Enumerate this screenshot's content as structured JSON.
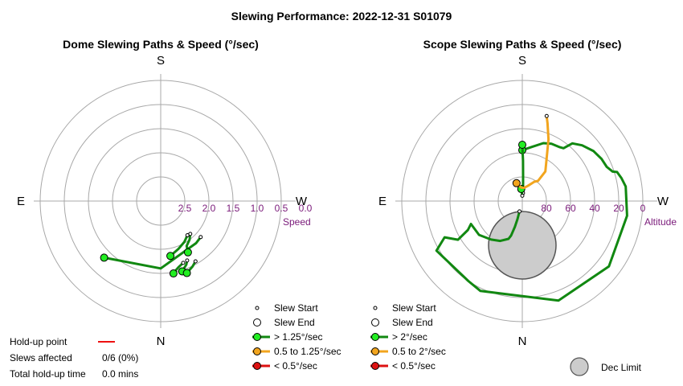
{
  "title": "Slewing Performance: 2022-12-31 S01079",
  "colors": {
    "fast": "#118811",
    "mid": "#f2a51e",
    "slow": "#dd1111",
    "fast_marker": "#22ee22",
    "mid_marker": "#f2a51e",
    "slow_marker": "#dd1111",
    "ring": "#a8a8a8",
    "tick": "#7a1a7a",
    "dec_limit": "#cccccc",
    "holdup": "#ee1111"
  },
  "chart_data": [
    {
      "type": "polar-path",
      "title": "Dome Slewing Paths & Speed (°/sec)",
      "directions": {
        "top": "S",
        "bottom": "N",
        "left": "E",
        "right": "W"
      },
      "radial_axis": {
        "label": "Speed",
        "ticks": [
          "2.5",
          "2.0",
          "1.5",
          "1.0",
          "0.5",
          "0.0"
        ]
      },
      "series": [
        {
          "speed_class": "fast",
          "points": [
            [
              225,
              1.05
            ],
            [
              180,
              1.38
            ],
            [
              140,
              1.7
            ],
            [
              132,
              1.73
            ]
          ]
        },
        {
          "speed_class": "fast",
          "points": [
            [
              152,
              1.62
            ],
            [
              150,
              1.78
            ],
            [
              143,
              1.88
            ],
            [
              138,
              1.98
            ]
          ]
        },
        {
          "speed_class": "fast",
          "points": [
            [
              170,
              1.68
            ],
            [
              160,
              1.8
            ],
            [
              150,
              1.9
            ],
            [
              142,
              2.0
            ]
          ]
        },
        {
          "speed_class": "fast",
          "points": [
            [
              170,
              1.22
            ],
            [
              168,
              1.28
            ],
            [
              165,
              1.35
            ],
            [
              160,
              1.42
            ]
          ]
        },
        {
          "speed_class": "fast",
          "points": [
            [
              163,
              1.22
            ],
            [
              158,
              1.35
            ],
            [
              156,
              1.44
            ]
          ]
        },
        {
          "speed_class": "fast",
          "points": [
            [
              160,
              1.14
            ],
            [
              154,
              1.24
            ],
            [
              150,
              1.32
            ]
          ]
        }
      ],
      "legend": [
        {
          "label": "Slew Start",
          "kind": "start"
        },
        {
          "label": "Slew End",
          "kind": "end"
        },
        {
          "label": "> 1.25°/sec",
          "kind": "fast"
        },
        {
          "label": "0.5 to 1.25°/sec",
          "kind": "mid"
        },
        {
          "label": "< 0.5°/sec",
          "kind": "slow"
        }
      ]
    },
    {
      "type": "polar-path",
      "title": "Scope Slewing Paths & Speed (°/sec)",
      "directions": {
        "top": "S",
        "bottom": "N",
        "left": "E",
        "right": "W"
      },
      "radial_axis": {
        "label": "Altitude",
        "ticks": [
          "80",
          "60",
          "40",
          "20",
          "0"
        ]
      },
      "series": [
        {
          "speed_class": "fast",
          "points": [
            [
              0,
              52
            ],
            [
              10,
              49
            ],
            [
              20,
              44
            ],
            [
              27,
              42
            ],
            [
              35,
              41
            ],
            [
              38,
              40
            ],
            [
              41,
              33
            ],
            [
              47,
              29
            ],
            [
              55,
              25
            ],
            [
              62,
              23
            ],
            [
              68,
              22
            ],
            [
              72,
              19
            ],
            [
              73,
              16
            ],
            [
              77,
              14
            ],
            [
              82,
              12
            ],
            [
              98,
              11
            ],
            [
              127,
              9
            ],
            [
              160,
              11
            ],
            [
              205,
              16
            ],
            [
              214,
              18
            ],
            [
              240,
              16
            ],
            [
              245,
              26
            ],
            [
              239,
              34
            ],
            [
              242,
              44
            ],
            [
              246,
              48
            ],
            [
              232,
              49
            ],
            [
              219,
              53
            ],
            [
              209,
              56
            ],
            [
              200,
              60
            ],
            [
              198,
              63
            ],
            [
              196,
              70
            ],
            [
              195,
              76
            ],
            [
              195,
              82
            ]
          ]
        },
        {
          "speed_class": "fast",
          "points": [
            [
              0,
              48
            ],
            [
              1,
              60
            ],
            [
              2,
              72
            ],
            [
              5,
              84
            ]
          ]
        },
        {
          "speed_class": "fast",
          "points": [
            [
              355,
              81
            ],
            [
              0,
              86
            ]
          ]
        },
        {
          "speed_class": "mid",
          "points": [
            [
              342,
              76
            ],
            [
              356,
              80
            ],
            [
              8,
              80
            ],
            [
              20,
              78
            ],
            [
              32,
              73
            ],
            [
              38,
              71
            ],
            [
              38,
              62
            ],
            [
              23,
              40
            ],
            [
              18,
              29
            ],
            [
              16,
              24
            ]
          ]
        }
      ],
      "dec_limit": {
        "label": "Dec Limit"
      },
      "legend": [
        {
          "label": "Slew Start",
          "kind": "start"
        },
        {
          "label": "Slew End",
          "kind": "end"
        },
        {
          "label": "> 2°/sec",
          "kind": "fast"
        },
        {
          "label": "0.5 to 2°/sec",
          "kind": "mid"
        },
        {
          "label": "< 0.5°/sec",
          "kind": "slow"
        }
      ]
    }
  ],
  "holdup": {
    "point_label": "Hold-up point",
    "slews_label": "Slews affected",
    "slews_value": "0/6 (0%)",
    "total_label": "Total hold-up time",
    "total_value": "0.0 mins"
  }
}
